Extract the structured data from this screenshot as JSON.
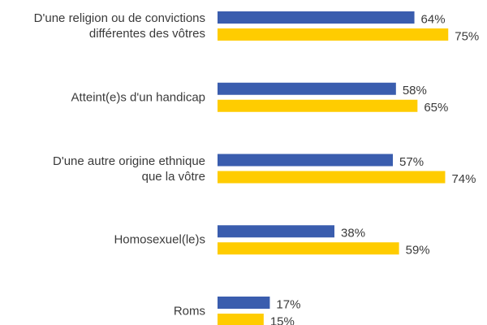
{
  "chart_data": {
    "type": "bar",
    "orientation": "horizontal",
    "categories": [
      "D'une religion ou de convictions\ndifférentes des vôtres",
      "Atteint(e)s d'un handicap",
      "D'une autre origine ethnique\nque la vôtre",
      "Homosexuel(le)s",
      "Roms"
    ],
    "series": [
      {
        "color": "#3a5dae",
        "values": [
          64,
          58,
          57,
          38,
          17
        ],
        "value_labels": [
          "64%",
          "58%",
          "57%",
          "38%",
          "17%"
        ]
      },
      {
        "color": "#ffcc00",
        "values": [
          75,
          65,
          74,
          59,
          15
        ],
        "value_labels": [
          "75%",
          "65%",
          "74%",
          "59%",
          "15%"
        ]
      }
    ]
  }
}
